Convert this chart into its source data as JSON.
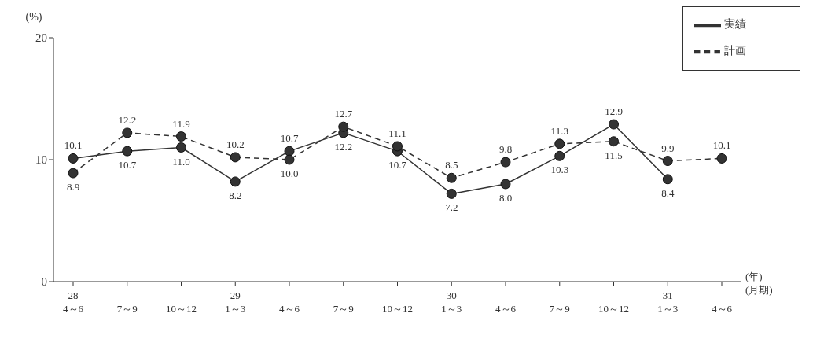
{
  "chart_data": {
    "type": "line",
    "ylabel": "(%)",
    "xlabel": "(年)\n(月期)",
    "categories": [
      "28\n4～6",
      "7～9",
      "10～12",
      "29\n1～3",
      "4～6",
      "7～9",
      "10～12",
      "30\n1～3",
      "4～6",
      "7～9",
      "10～12",
      "31\n1～3",
      "4～6"
    ],
    "series": [
      {
        "name": "実績",
        "color": "#333333",
        "line_style": "solid",
        "values": [
          10.1,
          10.7,
          11.0,
          8.2,
          10.7,
          12.2,
          10.7,
          7.2,
          8.0,
          10.3,
          12.9,
          8.4,
          null
        ],
        "value_labels": [
          "10.1",
          "10.7",
          "11.0",
          "8.2",
          "10.7",
          "12.2",
          "10.7",
          "7.2",
          "8.0",
          "10.3",
          "12.9",
          "8.4",
          null
        ]
      },
      {
        "name": "計画",
        "color": "#333333",
        "line_style": "dashed",
        "values": [
          8.9,
          12.2,
          11.9,
          10.2,
          10.0,
          12.7,
          11.1,
          8.5,
          9.8,
          11.3,
          11.5,
          9.9,
          10.1
        ],
        "value_labels": [
          "8.9",
          "12.2",
          "11.9",
          "10.2",
          "10.0",
          "12.7",
          "11.1",
          "8.5",
          "9.8",
          "11.3",
          "11.5",
          "9.9",
          "10.1"
        ]
      }
    ],
    "ylim": [
      0,
      20
    ],
    "yticks": [
      0,
      10,
      20
    ],
    "grid": false,
    "legend": "top right",
    "marker": "circle"
  }
}
